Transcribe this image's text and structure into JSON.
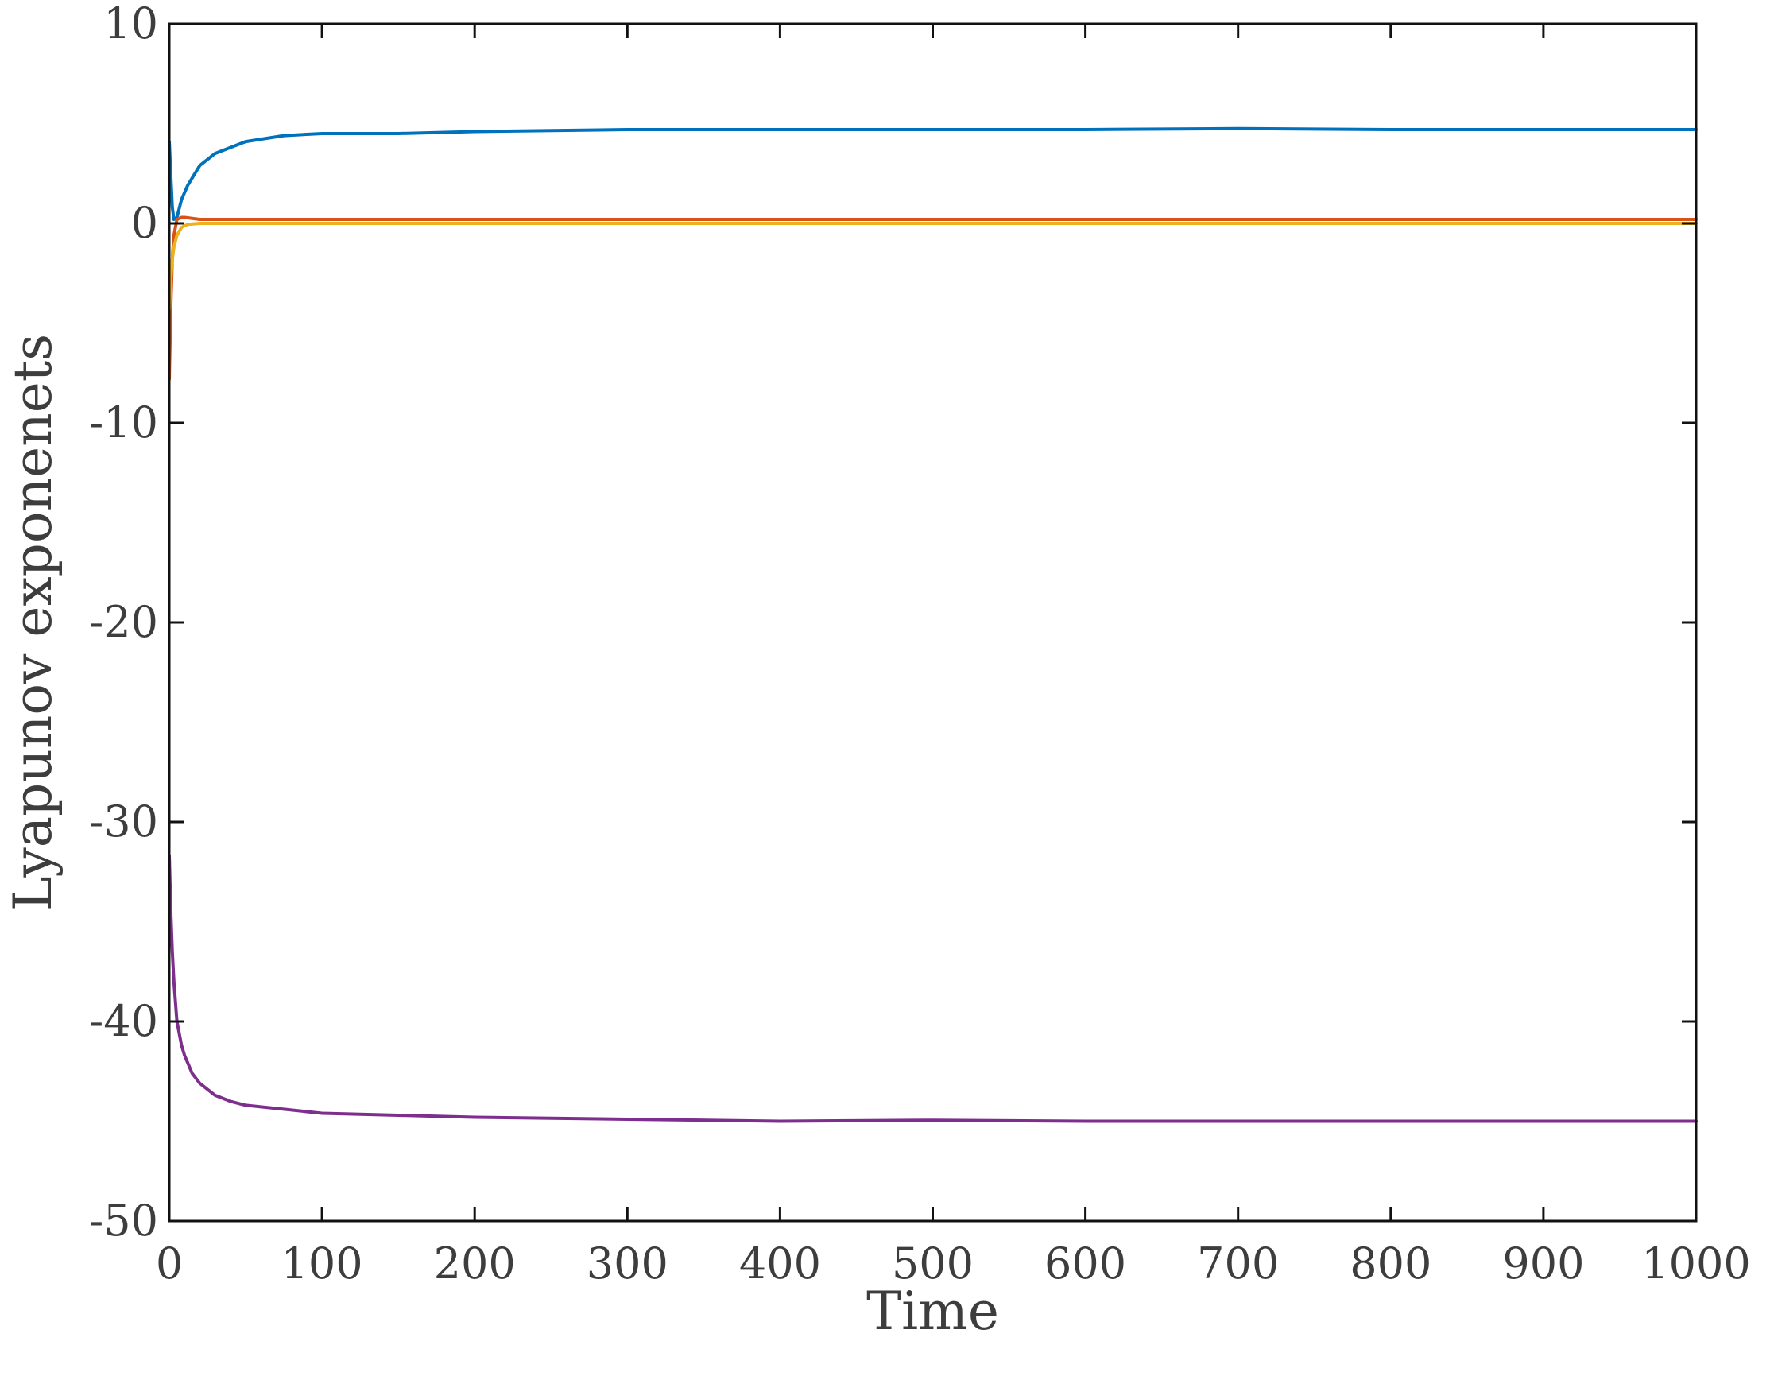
{
  "chart_data": {
    "type": "line",
    "title": "",
    "xlabel": "Time",
    "ylabel": "Lyapunov exponenets",
    "xlim": [
      0,
      1000
    ],
    "ylim": [
      -50,
      10
    ],
    "xticks": [
      0,
      100,
      200,
      300,
      400,
      500,
      600,
      700,
      800,
      900,
      1000
    ],
    "yticks": [
      10,
      0,
      -10,
      -20,
      -30,
      -40,
      -50
    ],
    "xtick_labels": [
      "0",
      "100",
      "200",
      "300",
      "400",
      "500",
      "600",
      "700",
      "800",
      "900",
      "1000"
    ],
    "ytick_labels": [
      "10",
      "0",
      "-10",
      "-20",
      "-30",
      "-40",
      "-50"
    ],
    "grid": false,
    "series": [
      {
        "color": "#0072BD",
        "x": [
          0,
          1,
          2,
          3,
          5,
          8,
          12,
          20,
          30,
          50,
          75,
          100,
          150,
          200,
          300,
          400,
          500,
          600,
          700,
          800,
          900,
          1000
        ],
        "values": [
          4.1,
          2.4,
          0.8,
          0.2,
          0.3,
          1.2,
          1.9,
          2.9,
          3.5,
          4.1,
          4.4,
          4.5,
          4.5,
          4.6,
          4.7,
          4.7,
          4.7,
          4.7,
          4.75,
          4.7,
          4.7,
          4.7
        ]
      },
      {
        "color": "#D95319",
        "x": [
          0,
          1,
          2,
          3,
          5,
          8,
          10,
          20,
          50,
          100,
          200,
          400,
          600,
          800,
          1000
        ],
        "values": [
          -7.8,
          -4.2,
          -1.8,
          -0.6,
          0.2,
          0.3,
          0.3,
          0.2,
          0.2,
          0.2,
          0.2,
          0.2,
          0.2,
          0.2,
          0.2
        ]
      },
      {
        "color": "#EDB120",
        "x": [
          0,
          1,
          2,
          3,
          5,
          8,
          12,
          20,
          50,
          100,
          200,
          400,
          600,
          800,
          1000
        ],
        "values": [
          -4.3,
          -2.8,
          -1.8,
          -1.2,
          -0.6,
          -0.2,
          -0.05,
          0.0,
          0.0,
          0.0,
          0.0,
          0.0,
          0.0,
          0.0,
          0.0
        ]
      },
      {
        "color": "#7E2F8E",
        "x": [
          0,
          1,
          2,
          3,
          5,
          8,
          10,
          15,
          20,
          30,
          40,
          50,
          75,
          100,
          150,
          200,
          300,
          400,
          500,
          600,
          700,
          800,
          900,
          1000
        ],
        "values": [
          -31.7,
          -34.5,
          -36.5,
          -38.0,
          -40.0,
          -41.2,
          -41.7,
          -42.6,
          -43.1,
          -43.7,
          -44.0,
          -44.2,
          -44.4,
          -44.6,
          -44.7,
          -44.8,
          -44.9,
          -45.0,
          -44.95,
          -45.0,
          -45.0,
          -45.0,
          -45.0,
          -45.0
        ]
      }
    ]
  }
}
